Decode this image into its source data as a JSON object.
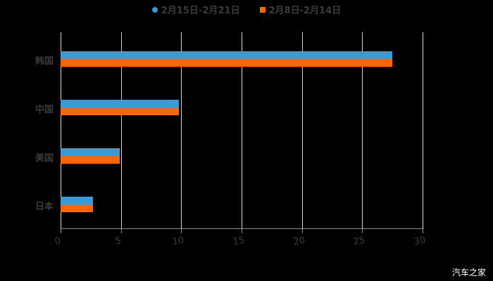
{
  "chart_data": {
    "type": "bar",
    "orientation": "horizontal",
    "title": "",
    "categories": [
      "韩国",
      "中国",
      "美国",
      "日本"
    ],
    "series": [
      {
        "name": "2月15日-2月21日",
        "color": "#3a9ad4",
        "values": [
          27.5,
          9.8,
          4.9,
          2.7
        ]
      },
      {
        "name": "2月8日-2月14日",
        "color": "#ff6600",
        "values": [
          27.5,
          9.8,
          4.9,
          2.7
        ]
      }
    ],
    "xlabel": "",
    "ylabel": "",
    "xlim": [
      0,
      30
    ],
    "xticks": [
      "0",
      "5",
      "10",
      "15",
      "20",
      "25",
      "30"
    ],
    "grid": true,
    "legend_position": "top"
  },
  "legend": [
    {
      "label": "2月15日-2月21日",
      "color": "#3a9ad4"
    },
    {
      "label": "2月8日-2月14日",
      "color": "#ff6600"
    }
  ],
  "watermark": "汽车之家"
}
